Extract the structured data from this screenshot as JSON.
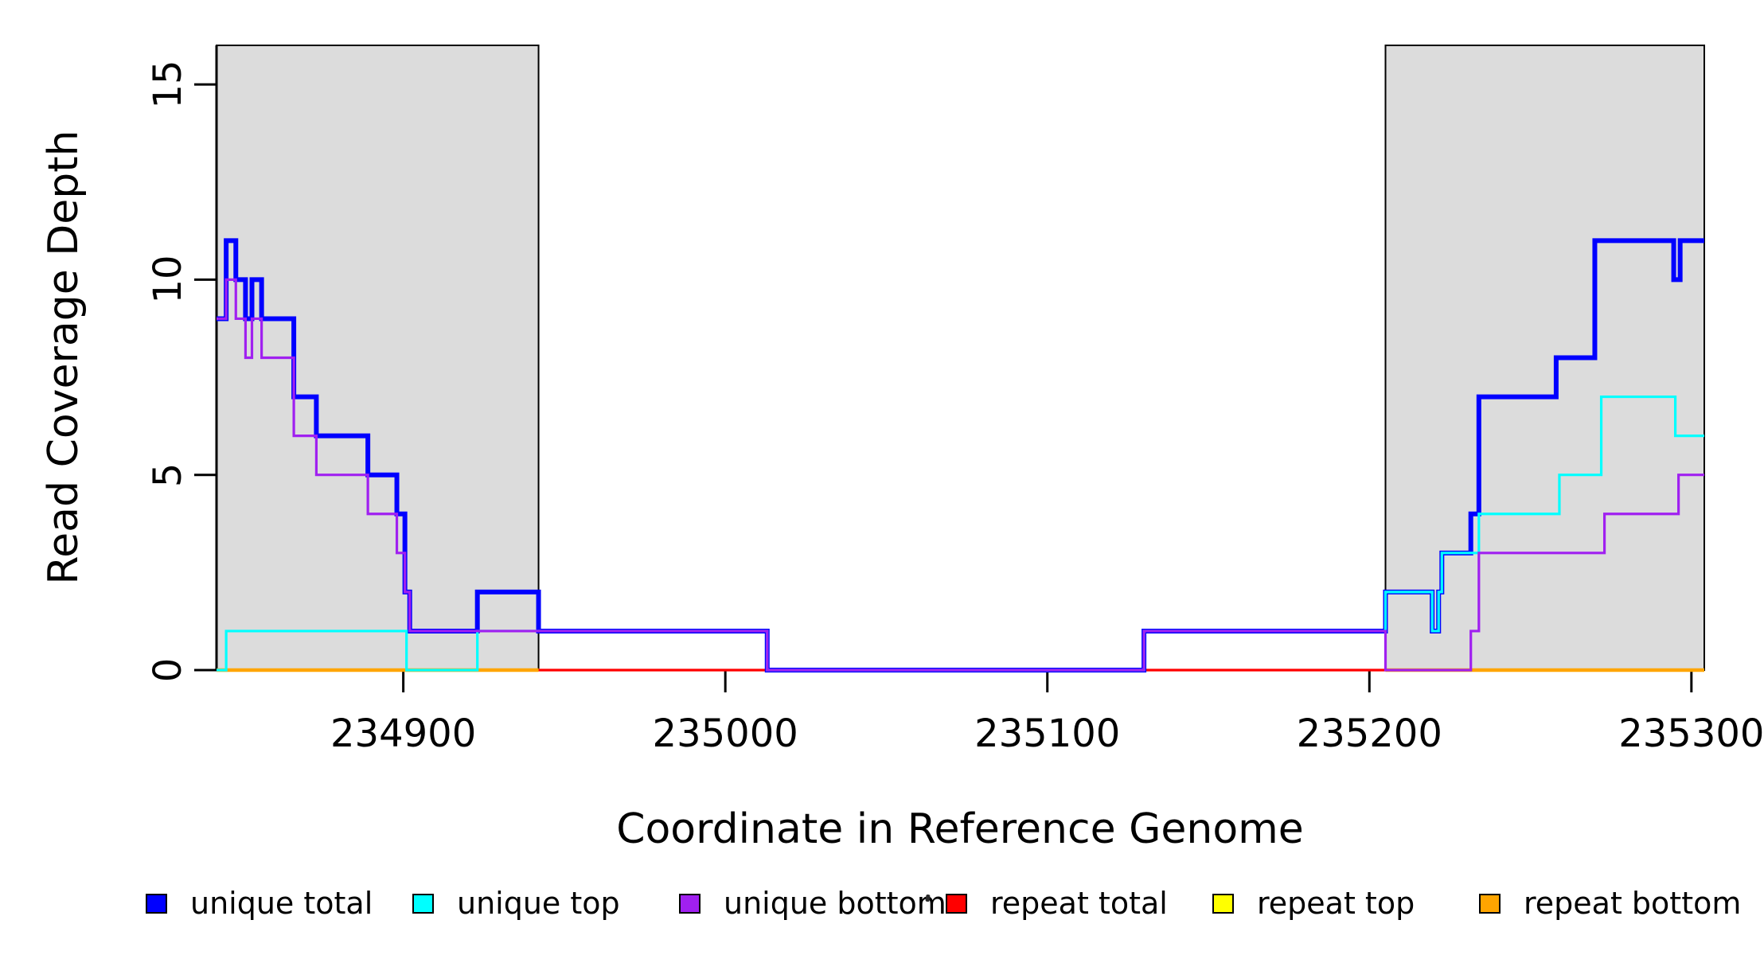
{
  "chart_data": {
    "type": "line",
    "step": true,
    "title": "",
    "xlabel": "Coordinate in Reference Genome",
    "ylabel": "Read Coverage Depth",
    "xlim": [
      234842,
      235304
    ],
    "ylim": [
      0,
      16
    ],
    "grid": false,
    "x_tick_values": [
      234900,
      235000,
      235100,
      235200,
      235300
    ],
    "x_tick_labels": [
      "234900",
      "235000",
      "235100",
      "235200",
      "235300"
    ],
    "y_tick_values": [
      0,
      5,
      10,
      15
    ],
    "y_tick_labels": [
      "0",
      "5",
      "10",
      "15"
    ],
    "shaded_regions": [
      {
        "x0": 234842,
        "x1": 234942,
        "fill": "#DCDCDC",
        "stroke": "#000000"
      },
      {
        "x0": 235205,
        "x1": 235304,
        "fill": "#DCDCDC",
        "stroke": "#000000"
      }
    ],
    "draw_order": [
      3,
      4,
      5,
      0,
      1,
      2
    ],
    "series": [
      {
        "name": "unique total",
        "color": "#0000FF",
        "linewidth": 6,
        "points": [
          [
            234842,
            9
          ],
          [
            234845,
            11
          ],
          [
            234848,
            10
          ],
          [
            234851,
            9
          ],
          [
            234853,
            10
          ],
          [
            234856,
            9
          ],
          [
            234866,
            7
          ],
          [
            234873,
            6
          ],
          [
            234889,
            5
          ],
          [
            234898,
            4
          ],
          [
            234900.5,
            2
          ],
          [
            234902,
            1
          ],
          [
            234923,
            2
          ],
          [
            234942,
            1
          ],
          [
            235013,
            0
          ],
          [
            235130,
            1
          ],
          [
            235205,
            2
          ],
          [
            235219.5,
            1
          ],
          [
            235221.5,
            2
          ],
          [
            235222.5,
            3
          ],
          [
            235231.5,
            4
          ],
          [
            235234,
            7
          ],
          [
            235258,
            8
          ],
          [
            235270,
            11
          ],
          [
            235294.5,
            10
          ],
          [
            235296.5,
            11
          ],
          [
            235304,
            11
          ]
        ]
      },
      {
        "name": "unique top",
        "color": "#00FFFF",
        "linewidth": 3.2,
        "points": [
          [
            234842,
            0
          ],
          [
            234845,
            1
          ],
          [
            234901,
            0
          ],
          [
            234923,
            1
          ],
          [
            235013,
            0
          ],
          [
            235130,
            1
          ],
          [
            235205,
            2
          ],
          [
            235219.5,
            1
          ],
          [
            235221.5,
            2
          ],
          [
            235222.5,
            3
          ],
          [
            235234,
            4
          ],
          [
            235259,
            5
          ],
          [
            235272,
            7
          ],
          [
            235295,
            6
          ],
          [
            235304,
            6
          ]
        ]
      },
      {
        "name": "unique bottom",
        "color": "#A020F0",
        "linewidth": 3.2,
        "points": [
          [
            234842,
            9
          ],
          [
            234845,
            10
          ],
          [
            234848,
            9
          ],
          [
            234851,
            8
          ],
          [
            234853,
            9
          ],
          [
            234856,
            8
          ],
          [
            234866,
            6
          ],
          [
            234873,
            5
          ],
          [
            234889,
            4
          ],
          [
            234898,
            3
          ],
          [
            234900.5,
            2
          ],
          [
            234902,
            1
          ],
          [
            235013,
            0
          ],
          [
            235130,
            1
          ],
          [
            235205,
            0
          ],
          [
            235231.5,
            1
          ],
          [
            235234,
            3
          ],
          [
            235273,
            4
          ],
          [
            235296,
            5
          ],
          [
            235304,
            5
          ]
        ]
      },
      {
        "name": "repeat total",
        "color": "#FF0000",
        "linewidth": 3.2,
        "points": [
          [
            234842,
            0
          ],
          [
            235304,
            0
          ]
        ]
      },
      {
        "name": "repeat top",
        "color": "#FFFF00",
        "linewidth": 3.2,
        "points": [
          [
            234842,
            0
          ],
          [
            234942,
            0
          ],
          null,
          [
            235205,
            0
          ],
          [
            235304,
            0
          ]
        ]
      },
      {
        "name": "repeat bottom",
        "color": "#FFA500",
        "linewidth": 4.5,
        "points": [
          [
            234842,
            0
          ],
          [
            234942,
            0
          ],
          null,
          [
            235205,
            0
          ],
          [
            235304,
            0
          ]
        ]
      }
    ],
    "legend": {
      "position": "bottom",
      "items": [
        {
          "label": "unique total",
          "color": "#0000FF"
        },
        {
          "label": "unique top",
          "color": "#00FFFF"
        },
        {
          "label": "unique bottom",
          "color": "#A020F0"
        },
        {
          "label": "repeat total",
          "color": "#FF0000"
        },
        {
          "label": "repeat top",
          "color": "#FFFF00"
        },
        {
          "label": "repeat bottom",
          "color": "#FFA500"
        }
      ]
    }
  }
}
